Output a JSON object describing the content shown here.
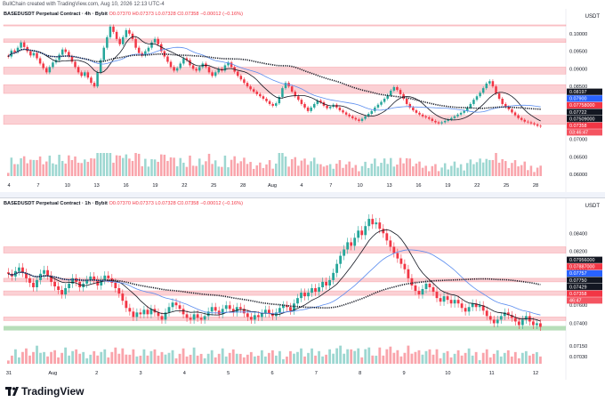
{
  "header": {
    "credit": "BullChain created with TradingView.com, Aug 10, 2026 12:13 UTC-4"
  },
  "colors": {
    "up": "#26a69a",
    "down": "#f23645",
    "zone": "#f7a9b0",
    "demand": "#a5d6a7",
    "ma_black": "#131722",
    "ma_blue": "#5b8def",
    "grey_zone": "#c9ccd3"
  },
  "brand": {
    "name": "TradingView"
  },
  "chart_data": [
    {
      "type": "candlestick",
      "title": "BASEDUSDT Perpetual Contract · 4h · Bybit",
      "legend": {
        "symbol": "BASEDUSDT Perpetual Contract · 4h · Bybit",
        "ohlc": "O0.07370 H0.07373 L0.07328 C0.07358 −0.00012 (−0.16%)"
      },
      "currency": "USDT",
      "ylim": [
        0.0595,
        0.1035
      ],
      "y_ticks": [
        "0.10000",
        "0.09500",
        "0.09000",
        "0.08500",
        "0.08000",
        "0.07500",
        "0.07000",
        "0.06500",
        "0.06000"
      ],
      "x_ticks": [
        "4",
        "7",
        "10",
        "13",
        "16",
        "19",
        "22",
        "25",
        "28",
        "Aug",
        "4",
        "7",
        "10",
        "13",
        "16",
        "19",
        "22",
        "25",
        "28"
      ],
      "price_labels": [
        {
          "text": "0.08197",
          "kind": "dark"
        },
        {
          "text": "0.07900",
          "kind": "blue"
        },
        {
          "text": "0.07758000",
          "kind": "red"
        },
        {
          "text": "0.07722",
          "kind": "dark"
        },
        {
          "text": "0.07509000",
          "kind": "dark"
        },
        {
          "text": "0.07358",
          "kind": "red"
        },
        {
          "text": "03:46:47",
          "kind": "red_sub"
        }
      ],
      "zones": [
        [
          0.1025,
          0.1025
        ],
        [
          0.0985,
          0.0975
        ],
        [
          0.0905,
          0.0885
        ],
        [
          0.0855,
          0.083
        ],
        [
          0.0768,
          0.0742
        ]
      ],
      "closes": [
        0.0935,
        0.0952,
        0.0948,
        0.096,
        0.0975,
        0.0962,
        0.095,
        0.0938,
        0.0945,
        0.093,
        0.0915,
        0.0902,
        0.089,
        0.0905,
        0.0918,
        0.0925,
        0.094,
        0.0955,
        0.0948,
        0.0935,
        0.092,
        0.0905,
        0.089,
        0.088,
        0.089,
        0.0875,
        0.086,
        0.085,
        0.089,
        0.0925,
        0.096,
        0.099,
        0.102,
        0.1005,
        0.0985,
        0.097,
        0.099,
        0.101,
        0.1,
        0.0985,
        0.096,
        0.0945,
        0.0938,
        0.095,
        0.096,
        0.0975,
        0.0985,
        0.097,
        0.095,
        0.0935,
        0.092,
        0.0905,
        0.0895,
        0.0902,
        0.0915,
        0.093,
        0.0925,
        0.091,
        0.09,
        0.0895,
        0.0905,
        0.0915,
        0.0905,
        0.089,
        0.088,
        0.089,
        0.09,
        0.0895,
        0.091,
        0.0918,
        0.0905,
        0.0892,
        0.088,
        0.087,
        0.086,
        0.085,
        0.0842,
        0.0835,
        0.0828,
        0.0822,
        0.0815,
        0.0808,
        0.08,
        0.0795,
        0.0802,
        0.082,
        0.0845,
        0.086,
        0.085,
        0.0835,
        0.0822,
        0.0812,
        0.08,
        0.079,
        0.078,
        0.079,
        0.08,
        0.081,
        0.0805,
        0.0795,
        0.0788,
        0.0792,
        0.0798,
        0.079,
        0.0782,
        0.0776,
        0.077,
        0.0765,
        0.076,
        0.0756,
        0.0752,
        0.0758,
        0.0765,
        0.0772,
        0.078,
        0.079,
        0.0798,
        0.0806,
        0.0815,
        0.0825,
        0.0838,
        0.0848,
        0.084,
        0.0828,
        0.0815,
        0.08,
        0.079,
        0.0782,
        0.0775,
        0.077,
        0.0765,
        0.0762,
        0.0758,
        0.0752,
        0.0748,
        0.0745,
        0.0748,
        0.0752,
        0.0756,
        0.076,
        0.0765,
        0.077,
        0.0775,
        0.078,
        0.079,
        0.08,
        0.0812,
        0.0822,
        0.0832,
        0.0845,
        0.0858,
        0.0865,
        0.085,
        0.083,
        0.0815,
        0.08,
        0.0792,
        0.0785,
        0.0776,
        0.0768,
        0.076,
        0.0755,
        0.075,
        0.0748,
        0.0745,
        0.0742,
        0.0738,
        0.0736
      ]
    },
    {
      "type": "candlestick",
      "title": "BASEDUSDT Perpetual Contract · 1h · Bybit",
      "legend": {
        "symbol": "BASEDUSDT Perpetual Contract · 1h · Bybit",
        "ohlc": "O0.07370 H0.07373 L0.07328 C0.07358 −0.00012 (−0.16%)"
      },
      "currency": "USDT",
      "ylim": [
        0.0695,
        0.0865
      ],
      "y_ticks": [
        "0.08400",
        "0.08200",
        "0.08000",
        "0.07800",
        "0.07600",
        "0.07400",
        "0.07150",
        "0.07030"
      ],
      "x_ticks": [
        "31",
        "Aug",
        "2",
        "3",
        "4",
        "5",
        "6",
        "7",
        "8",
        "9",
        "10",
        "11",
        "12"
      ],
      "price_labels": [
        {
          "text": "0.07956000",
          "kind": "dark"
        },
        {
          "text": "0.07887000",
          "kind": "red"
        },
        {
          "text": "0.07757",
          "kind": "blue"
        },
        {
          "text": "0.07750",
          "kind": "dark"
        },
        {
          "text": "0.07429",
          "kind": "dark"
        },
        {
          "text": "0.07358",
          "kind": "red"
        },
        {
          "text": "46:47",
          "kind": "red_sub"
        }
      ],
      "zones": [
        [
          0.0825,
          0.0818
        ],
        [
          0.079,
          0.0786
        ],
        [
          0.0776,
          0.0771
        ],
        [
          0.0747,
          0.0743
        ]
      ],
      "demand_zone": [
        0.0737,
        0.0732
      ],
      "closes": [
        0.0795,
        0.0792,
        0.0798,
        0.0802,
        0.0796,
        0.079,
        0.0785,
        0.078,
        0.0788,
        0.0795,
        0.0799,
        0.0793,
        0.0786,
        0.0781,
        0.0777,
        0.0772,
        0.0779,
        0.0784,
        0.079,
        0.0786,
        0.078,
        0.0784,
        0.0788,
        0.0792,
        0.0788,
        0.0782,
        0.0788,
        0.0793,
        0.079,
        0.0785,
        0.0779,
        0.0773,
        0.0765,
        0.0757,
        0.0753,
        0.0747,
        0.0752,
        0.075,
        0.0755,
        0.075,
        0.0756,
        0.0752,
        0.0748,
        0.0744,
        0.0752,
        0.0758,
        0.0763,
        0.076,
        0.0756,
        0.075,
        0.0746,
        0.0744,
        0.075,
        0.0746,
        0.0744,
        0.0748,
        0.0753,
        0.0758,
        0.0754,
        0.075,
        0.0756,
        0.076,
        0.0756,
        0.0752,
        0.0758,
        0.0756,
        0.0751,
        0.0747,
        0.0744,
        0.0749,
        0.0747,
        0.0751,
        0.0755,
        0.0751,
        0.0748,
        0.0752,
        0.0757,
        0.076,
        0.0758,
        0.0754,
        0.0762,
        0.0768,
        0.0774,
        0.077,
        0.0774,
        0.0779,
        0.0775,
        0.078,
        0.0786,
        0.0782,
        0.0788,
        0.0796,
        0.0806,
        0.0815,
        0.0822,
        0.083,
        0.0826,
        0.0835,
        0.0843,
        0.0838,
        0.0848,
        0.0856,
        0.085,
        0.0852,
        0.0845,
        0.084,
        0.0832,
        0.0825,
        0.0818,
        0.0812,
        0.0806,
        0.08,
        0.079,
        0.0782,
        0.0776,
        0.0772,
        0.0778,
        0.0784,
        0.078,
        0.0775,
        0.0768,
        0.0764,
        0.077,
        0.0766,
        0.0762,
        0.0766,
        0.0762,
        0.0757,
        0.0753,
        0.0758,
        0.0762,
        0.0758,
        0.076,
        0.0754,
        0.0748,
        0.0744,
        0.074,
        0.0744,
        0.0748,
        0.0752,
        0.0749,
        0.0746,
        0.0742,
        0.0738,
        0.0744,
        0.0748,
        0.0742,
        0.0738,
        0.074,
        0.0736
      ]
    }
  ]
}
